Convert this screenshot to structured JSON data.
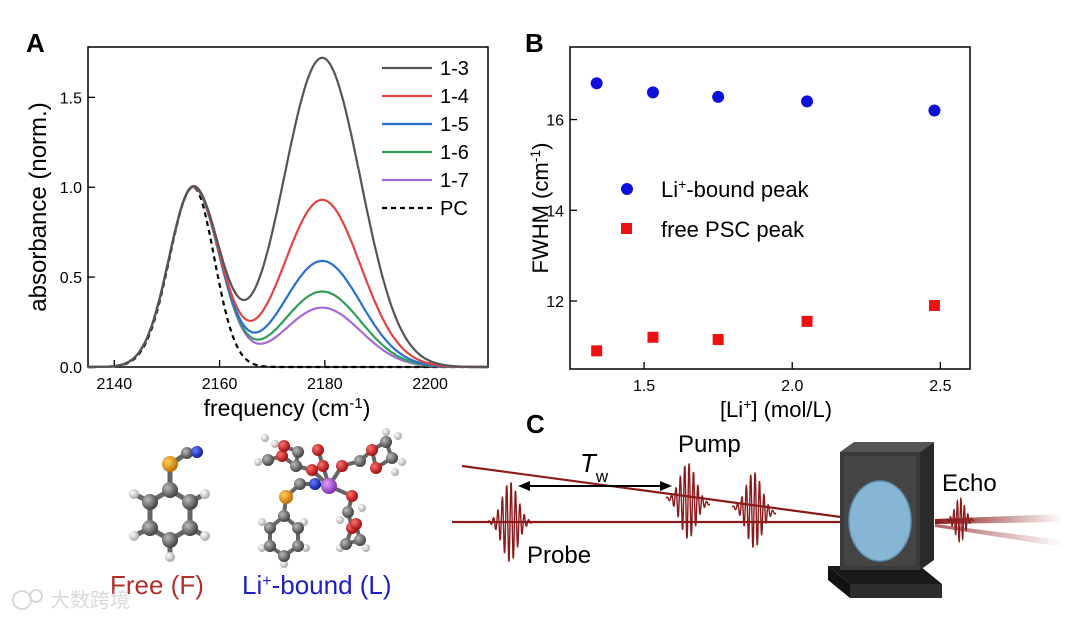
{
  "panel_a": {
    "label": "A",
    "chart_data": {
      "type": "line",
      "xlabel_main": "frequency (cm",
      "xlabel_sup": "-1",
      "xlabel_end": ")",
      "ylabel": "absorbance (norm.)",
      "xlim": [
        2135,
        2211
      ],
      "ylim": [
        0,
        1.78
      ],
      "xticks": [
        2140,
        2160,
        2180,
        2200
      ],
      "yticks": [
        0.0,
        0.5,
        1.0,
        1.5
      ],
      "ytick_labels": [
        "0.0",
        "0.5",
        "1.0",
        "1.5"
      ],
      "free_peak_center": 2155,
      "bound_peak_center": 2179.5,
      "series": [
        {
          "name": "1-3",
          "color": "#555555",
          "bound_peak": 1.72
        },
        {
          "name": "1-4",
          "color": "#e04444",
          "bound_peak": 0.93
        },
        {
          "name": "1-5",
          "color": "#2a6fcf",
          "bound_peak": 0.59
        },
        {
          "name": "1-6",
          "color": "#2f9e5a",
          "bound_peak": 0.42
        },
        {
          "name": "1-7",
          "color": "#a46ad8",
          "bound_peak": 0.33
        },
        {
          "name": "PC",
          "color": "#000000",
          "bound_peak": 0,
          "dashed": true
        }
      ]
    }
  },
  "panel_b": {
    "label": "B",
    "chart_data": {
      "type": "scatter",
      "xlabel_main": "[Li",
      "xlabel_sup": "+",
      "xlabel_end": "] (mol/L)",
      "ylabel_main": "FWHM (cm",
      "ylabel_sup": "-1",
      "ylabel_end": ")",
      "xlim": [
        1.25,
        2.6
      ],
      "ylim": [
        10.5,
        17.6
      ],
      "xticks": [
        1.5,
        2.0,
        2.5
      ],
      "xtick_labels": [
        "1.5",
        "2.0",
        "2.5"
      ],
      "yticks": [
        12,
        14,
        16
      ],
      "series": [
        {
          "name_main": "Li",
          "name_sup": "+",
          "name_end": "-bound peak",
          "marker": "circle",
          "color": "#1010dd",
          "x": [
            1.34,
            1.53,
            1.75,
            2.05,
            2.48
          ],
          "y": [
            16.8,
            16.6,
            16.5,
            16.4,
            16.2
          ]
        },
        {
          "name_main": "free PSC peak",
          "name_sup": "",
          "name_end": "",
          "marker": "square",
          "color": "#ee1111",
          "x": [
            1.34,
            1.53,
            1.75,
            2.05,
            2.48
          ],
          "y": [
            10.9,
            11.2,
            11.15,
            11.55,
            11.9
          ]
        }
      ]
    }
  },
  "panel_c": {
    "label": "C",
    "tw_main": "T",
    "tw_sub": "w",
    "pump": "Pump",
    "echo": "Echo",
    "probe": "Probe"
  },
  "molecules": {
    "free_label": "Free (F)",
    "bound_main": "Li",
    "bound_sup": "+",
    "bound_end": "-bound (L)",
    "free_color": "#b03030",
    "bound_color": "#2020c0"
  },
  "watermark": "大数跨境"
}
